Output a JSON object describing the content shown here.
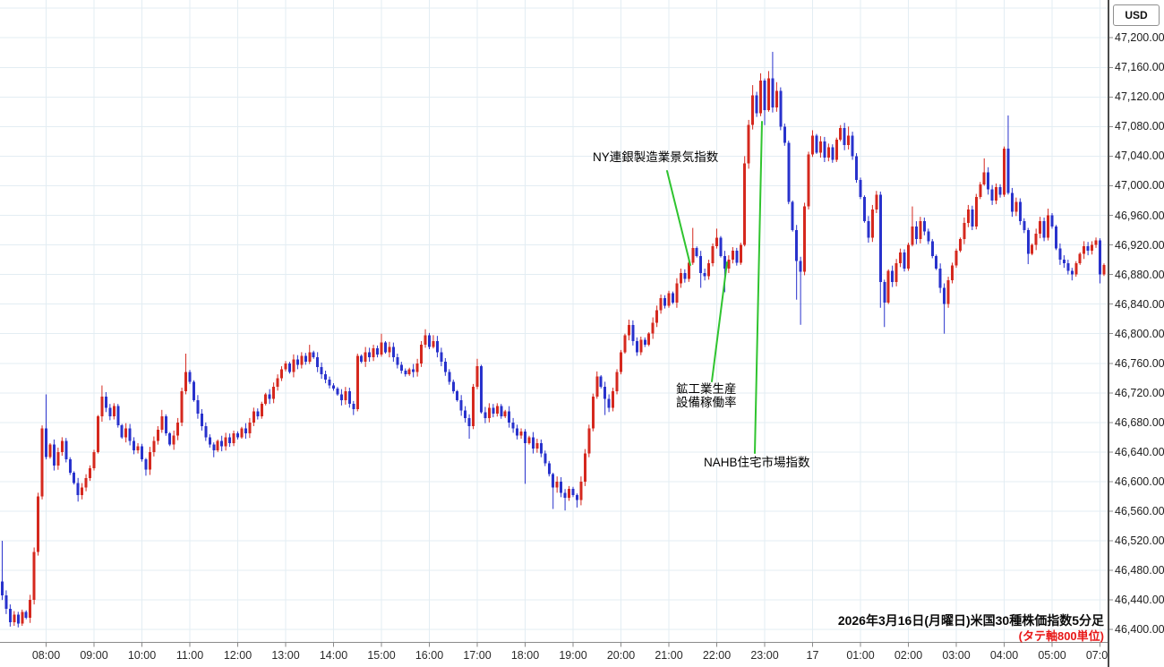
{
  "window": {
    "currency_label": "USD"
  },
  "footer": {
    "date_label": "2026年3月16日(月曜日)米国30種株価指数5分足",
    "axis_note": "(タテ軸800単位)"
  },
  "chart_data": {
    "type": "candlestick",
    "title": "米国30種株価指数 5分足 2026年3月16日(月曜日)",
    "instrument": "米国30種株価指数",
    "timeframe": "5分足",
    "currency": "USD",
    "grid": true,
    "y_axis": {
      "min": 46400,
      "max": 47200,
      "step": 40,
      "unit": "USD",
      "labels": [
        "47,200.00",
        "47,160.00",
        "47,120.00",
        "47,080.00",
        "47,040.00",
        "47,000.00",
        "46,960.00",
        "46,920.00",
        "46,880.00",
        "46,840.00",
        "46,800.00",
        "46,760.00",
        "46,720.00",
        "46,680.00",
        "46,640.00",
        "46,600.00",
        "46,560.00",
        "46,520.00",
        "46,480.00",
        "46,440.00",
        "46,400.00"
      ]
    },
    "x_axis": {
      "labels": [
        "08:00",
        "09:00",
        "10:00",
        "11:00",
        "12:00",
        "13:00",
        "14:00",
        "15:00",
        "16:00",
        "17:00",
        "18:00",
        "19:00",
        "20:00",
        "21:00",
        "22:00",
        "23:00",
        "17",
        "01:00",
        "02:00",
        "03:00",
        "04:00",
        "05:00",
        "07:00"
      ],
      "first_candle_time": "07:05",
      "interval_minutes": 5,
      "skipped_hour": "06:00-06:55"
    },
    "first_open": 46465,
    "closes": [
      46446,
      46428,
      46410,
      46420,
      46408,
      46424,
      46416,
      46440,
      46505,
      46580,
      46672,
      46633,
      46650,
      46622,
      46640,
      46655,
      46630,
      46612,
      46598,
      46582,
      46592,
      46605,
      46618,
      46640,
      46688,
      46715,
      46700,
      46688,
      46702,
      46676,
      46660,
      46672,
      46655,
      46642,
      46648,
      46630,
      46616,
      46640,
      46655,
      46670,
      46688,
      46665,
      46650,
      46662,
      46680,
      46722,
      46748,
      46735,
      46710,
      46692,
      46675,
      46660,
      46650,
      46642,
      46655,
      46648,
      46660,
      46652,
      46665,
      46660,
      46672,
      46665,
      46680,
      46695,
      46688,
      46705,
      46718,
      46712,
      46728,
      46740,
      46752,
      46760,
      46748,
      46765,
      46758,
      46770,
      46762,
      46775,
      46768,
      46755,
      46745,
      46738,
      46730,
      46726,
      46718,
      46710,
      46722,
      46705,
      46698,
      46770,
      46762,
      46775,
      46768,
      46780,
      46772,
      46788,
      46775,
      46782,
      46768,
      46758,
      46750,
      46745,
      46752,
      46748,
      46760,
      46785,
      46798,
      46782,
      46790,
      46775,
      46762,
      46748,
      46735,
      46722,
      46710,
      46696,
      46686,
      46675,
      46728,
      46756,
      46694,
      46686,
      46700,
      46692,
      46702,
      46688,
      46695,
      46680,
      46672,
      46662,
      46668,
      46652,
      46660,
      46645,
      46652,
      46638,
      46625,
      46610,
      46592,
      46600,
      46585,
      46578,
      46590,
      46582,
      46575,
      46600,
      46638,
      46672,
      46715,
      46742,
      46728,
      46712,
      46700,
      46722,
      46748,
      46775,
      46798,
      46812,
      46790,
      46775,
      46792,
      46785,
      46800,
      46815,
      46832,
      46848,
      46838,
      46855,
      46842,
      46868,
      46882,
      46874,
      46896,
      46916,
      46905,
      46882,
      46878,
      46895,
      46918,
      46930,
      46905,
      46888,
      46900,
      46912,
      46896,
      46920,
      47030,
      47082,
      47122,
      47098,
      47142,
      47102,
      47145,
      47106,
      47128,
      47080,
      47058,
      46978,
      46940,
      46898,
      46884,
      46972,
      47042,
      47068,
      47045,
      47060,
      47038,
      47052,
      47035,
      47062,
      47078,
      47055,
      47068,
      47040,
      47008,
      46985,
      46952,
      46930,
      46968,
      46988,
      46870,
      46842,
      46885,
      46870,
      46895,
      46910,
      46888,
      46920,
      46945,
      46928,
      46952,
      46938,
      46925,
      46905,
      46888,
      46862,
      46840,
      46872,
      46892,
      46912,
      46928,
      46950,
      46968,
      46945,
      46985,
      47002,
      47018,
      46995,
      46980,
      46998,
      46988,
      47050,
      46990,
      46965,
      46978,
      46952,
      46940,
      46908,
      46920,
      46935,
      46952,
      46930,
      46960,
      46945,
      46915,
      46900,
      46895,
      46885,
      46880,
      46895,
      46908,
      46918,
      46912,
      46920,
      46926,
      46880,
      46893
    ],
    "wicks": {
      "0": [
        46520,
        46440
      ],
      "2": [
        null,
        46404
      ],
      "4": [
        null,
        46403
      ],
      "11": [
        46718,
        null
      ],
      "19": [
        null,
        46573
      ],
      "25": [
        46730,
        null
      ],
      "36": [
        null,
        46608
      ],
      "40": [
        46697,
        null
      ],
      "46": [
        46773,
        null
      ],
      "53": [
        null,
        46633
      ],
      "77": [
        46785,
        null
      ],
      "88": [
        null,
        46690
      ],
      "95": [
        46800,
        null
      ],
      "106": [
        46806,
        null
      ],
      "108": [
        46798,
        null
      ],
      "117": [
        null,
        46658
      ],
      "119": [
        46766,
        null
      ],
      "131": [
        null,
        46597
      ],
      "138": [
        null,
        46563
      ],
      "141": [
        null,
        46561
      ],
      "144": [
        null,
        46565
      ],
      "149": [
        46749,
        null
      ],
      "151": [
        null,
        46690
      ],
      "173": [
        46943,
        null
      ],
      "175": [
        null,
        46862
      ],
      "179": [
        46942,
        null
      ],
      "181": [
        null,
        46856
      ],
      "186": [
        47040,
        null
      ],
      "188": [
        47136,
        null
      ],
      "190": [
        47152,
        null
      ],
      "191": [
        null,
        47082
      ],
      "192": [
        47155,
        null
      ],
      "193": [
        47181,
        null
      ],
      "194": [
        47140,
        null
      ],
      "199": [
        null,
        46846
      ],
      "200": [
        null,
        46812
      ],
      "203": [
        47075,
        null
      ],
      "210": [
        47082,
        null
      ],
      "212": [
        47080,
        null
      ],
      "220": [
        null,
        46835
      ],
      "221": [
        null,
        46809
      ],
      "228": [
        46972,
        null
      ],
      "236": [
        null,
        46800
      ],
      "246": [
        47037,
        null
      ],
      "252": [
        47095,
        null
      ],
      "257": [
        null,
        46894
      ],
      "262": [
        46969,
        null
      ],
      "268": [
        null,
        46872
      ],
      "275": [
        null,
        46868
      ]
    },
    "annotations": [
      {
        "text": "NY連銀製造業景気指数",
        "line": [
          [
            745,
            191
          ],
          [
            771,
            296
          ]
        ]
      },
      {
        "text": "鉱工業生産\n設備稼働率",
        "line": [
          [
            795,
            426
          ],
          [
            812,
            293
          ]
        ]
      },
      {
        "text": "NAHB住宅市場指数",
        "line": [
          [
            843,
            506
          ],
          [
            851,
            136
          ]
        ]
      }
    ],
    "colors": {
      "up": "#d5281e",
      "down": "#2832cc",
      "grid": "#e3edf3",
      "annotation_line": "#2fc42f",
      "note_red": "#e81717",
      "axis_line": "#8a8a8a",
      "separator": "#4a4a4a"
    }
  }
}
